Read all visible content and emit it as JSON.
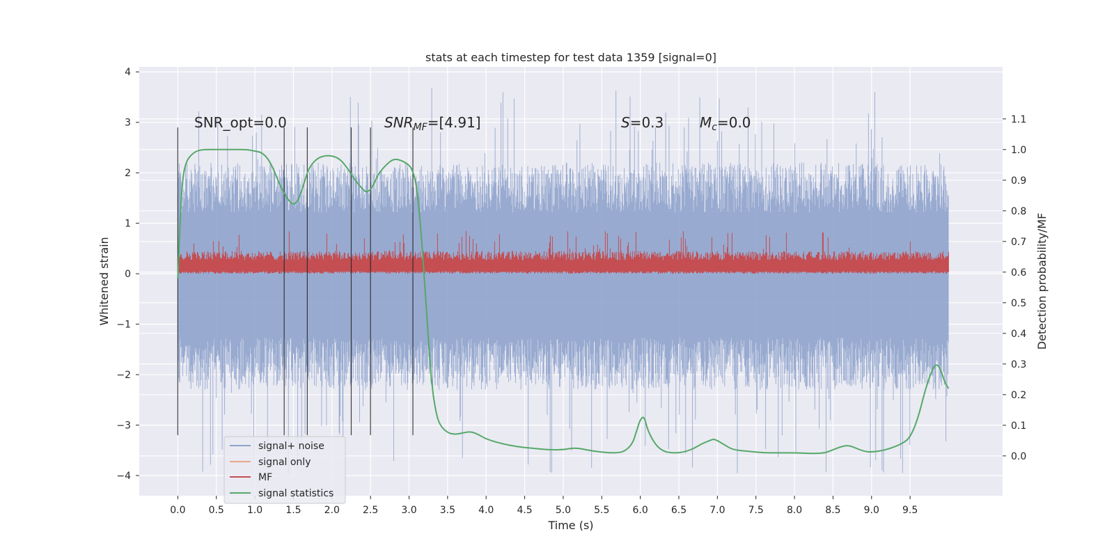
{
  "chart_data": {
    "type": "line",
    "title": "stats at each timestep for test data 1359 [signal=0]",
    "xlabel": "Time (s)",
    "ylabel": "Whitened strain",
    "ylabel_right": "Detection probability/MF",
    "xlim": [
      -0.5,
      10.7
    ],
    "ylim": [
      -4.4,
      4.1
    ],
    "ylim_right": [
      -0.13,
      1.27
    ],
    "x_ticks": [
      "0.0",
      "0.5",
      "1.0",
      "1.5",
      "2.0",
      "2.5",
      "3.0",
      "3.5",
      "4.0",
      "4.5",
      "5.0",
      "5.5",
      "6.0",
      "6.5",
      "7.0",
      "7.5",
      "8.0",
      "8.5",
      "9.0",
      "9.5"
    ],
    "y_ticks": [
      "4",
      "3",
      "2",
      "1",
      "0",
      "−1",
      "−2",
      "−3",
      "−4"
    ],
    "y_ticks_right": [
      "1.1",
      "1.0",
      "0.9",
      "0.8",
      "0.7",
      "0.6",
      "0.5",
      "0.4",
      "0.3",
      "0.2",
      "0.1",
      "0.0"
    ],
    "grid": true,
    "legend_position": "lower-left",
    "annotations": {
      "snr_opt": "SNR_opt=0.0",
      "snr_mf_base": "SNR",
      "snr_mf_sub": "MF",
      "snr_mf_value": "=[4.91]",
      "s_base": "S",
      "s_value": "=0.3",
      "mc_base": "M",
      "mc_sub": "c",
      "mc_value": "=0.0"
    },
    "series": [
      {
        "name": "signal+ noise",
        "color": "#8fa3cc",
        "envelope_x": [
          0.0,
          10.0
        ],
        "range": [
          -4.0,
          3.7
        ],
        "typical_band": [
          -2.3,
          2.2
        ]
      },
      {
        "name": "signal only",
        "color": "#e8a88a",
        "values": []
      },
      {
        "name": "MF",
        "color": "#c44e52",
        "envelope_x": [
          0.0,
          10.0
        ],
        "range": [
          0.0,
          0.85
        ],
        "typical_band": [
          0.05,
          0.45
        ]
      },
      {
        "name": "signal statistics",
        "color": "#55a868",
        "x": [
          0.0,
          0.05,
          0.1,
          0.2,
          0.3,
          0.5,
          0.7,
          0.9,
          1.0,
          1.1,
          1.2,
          1.3,
          1.35,
          1.4,
          1.45,
          1.5,
          1.55,
          1.6,
          1.65,
          1.7,
          1.8,
          1.9,
          2.0,
          2.1,
          2.2,
          2.3,
          2.4,
          2.45,
          2.5,
          2.55,
          2.6,
          2.7,
          2.8,
          2.9,
          3.0,
          3.05,
          3.1,
          3.15,
          3.2,
          3.25,
          3.3,
          3.35,
          3.4,
          3.5,
          3.6,
          3.7,
          3.8,
          3.9,
          4.0,
          4.2,
          4.4,
          4.6,
          4.8,
          5.0,
          5.1,
          5.2,
          5.4,
          5.6,
          5.7,
          5.8,
          5.9,
          5.95,
          6.0,
          6.05,
          6.1,
          6.2,
          6.3,
          6.4,
          6.5,
          6.6,
          6.7,
          6.8,
          6.9,
          6.95,
          7.0,
          7.1,
          7.2,
          7.4,
          7.6,
          7.8,
          8.0,
          8.2,
          8.3,
          8.4,
          8.5,
          8.6,
          8.7,
          8.8,
          8.9,
          9.0,
          9.2,
          9.4,
          9.5,
          9.6,
          9.7,
          9.8,
          9.85,
          9.9,
          9.95,
          10.0
        ],
        "values": [
          0.58,
          0.88,
          0.96,
          0.99,
          1.0,
          1.0,
          1.0,
          1.0,
          0.995,
          0.99,
          0.96,
          0.9,
          0.87,
          0.85,
          0.83,
          0.82,
          0.83,
          0.86,
          0.9,
          0.94,
          0.97,
          0.98,
          0.98,
          0.97,
          0.94,
          0.9,
          0.87,
          0.86,
          0.87,
          0.89,
          0.92,
          0.95,
          0.97,
          0.965,
          0.95,
          0.93,
          0.88,
          0.75,
          0.58,
          0.38,
          0.22,
          0.14,
          0.1,
          0.075,
          0.07,
          0.075,
          0.08,
          0.07,
          0.055,
          0.04,
          0.03,
          0.025,
          0.02,
          0.02,
          0.025,
          0.025,
          0.015,
          0.01,
          0.01,
          0.015,
          0.04,
          0.08,
          0.12,
          0.13,
          0.08,
          0.035,
          0.015,
          0.01,
          0.01,
          0.015,
          0.025,
          0.04,
          0.05,
          0.055,
          0.05,
          0.035,
          0.02,
          0.015,
          0.01,
          0.01,
          0.01,
          0.008,
          0.008,
          0.01,
          0.02,
          0.03,
          0.035,
          0.025,
          0.015,
          0.012,
          0.02,
          0.04,
          0.06,
          0.12,
          0.22,
          0.29,
          0.3,
          0.28,
          0.24,
          0.22
        ]
      },
      {
        "name": "vertical markers",
        "color": "#222222",
        "x": [
          0.0,
          1.38,
          1.68,
          2.25,
          2.5,
          3.05
        ],
        "top": [
          2.9,
          2.9,
          2.9,
          2.9,
          2.9,
          2.9
        ]
      }
    ]
  }
}
